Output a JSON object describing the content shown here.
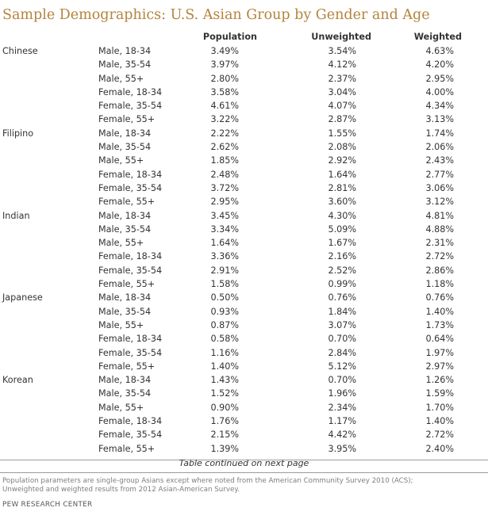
{
  "title": "Sample Demographics: U.S. Asian Group by Gender and Age",
  "columns": {
    "population": "Population",
    "unweighted": "Unweighted",
    "weighted": "Weighted"
  },
  "groups": [
    {
      "name": "Chinese",
      "rows": [
        {
          "label": "Male, 18-34",
          "population": "3.49%",
          "unweighted": "3.54%",
          "weighted": "4.63%"
        },
        {
          "label": "Male, 35-54",
          "population": "3.97%",
          "unweighted": "4.12%",
          "weighted": "4.20%"
        },
        {
          "label": "Male, 55+",
          "population": "2.80%",
          "unweighted": "2.37%",
          "weighted": "2.95%"
        },
        {
          "label": "Female, 18-34",
          "population": "3.58%",
          "unweighted": "3.04%",
          "weighted": "4.00%"
        },
        {
          "label": "Female, 35-54",
          "population": "4.61%",
          "unweighted": "4.07%",
          "weighted": "4.34%"
        },
        {
          "label": "Female, 55+",
          "population": "3.22%",
          "unweighted": "2.87%",
          "weighted": "3.13%"
        }
      ]
    },
    {
      "name": "Filipino",
      "rows": [
        {
          "label": "Male, 18-34",
          "population": "2.22%",
          "unweighted": "1.55%",
          "weighted": "1.74%"
        },
        {
          "label": "Male, 35-54",
          "population": "2.62%",
          "unweighted": "2.08%",
          "weighted": "2.06%"
        },
        {
          "label": "Male, 55+",
          "population": "1.85%",
          "unweighted": "2.92%",
          "weighted": "2.43%"
        },
        {
          "label": "Female, 18-34",
          "population": "2.48%",
          "unweighted": "1.64%",
          "weighted": "2.77%"
        },
        {
          "label": "Female, 35-54",
          "population": "3.72%",
          "unweighted": "2.81%",
          "weighted": "3.06%"
        },
        {
          "label": "Female, 55+",
          "population": "2.95%",
          "unweighted": "3.60%",
          "weighted": "3.12%"
        }
      ]
    },
    {
      "name": "Indian",
      "rows": [
        {
          "label": "Male, 18-34",
          "population": "3.45%",
          "unweighted": "4.30%",
          "weighted": "4.81%"
        },
        {
          "label": "Male, 35-54",
          "population": "3.34%",
          "unweighted": "5.09%",
          "weighted": "4.88%"
        },
        {
          "label": "Male, 55+",
          "population": "1.64%",
          "unweighted": "1.67%",
          "weighted": "2.31%"
        },
        {
          "label": "Female, 18-34",
          "population": "3.36%",
          "unweighted": "2.16%",
          "weighted": "2.72%"
        },
        {
          "label": "Female, 35-54",
          "population": "2.91%",
          "unweighted": "2.52%",
          "weighted": "2.86%"
        },
        {
          "label": "Female, 55+",
          "population": "1.58%",
          "unweighted": "0.99%",
          "weighted": "1.18%"
        }
      ]
    },
    {
      "name": "Japanese",
      "rows": [
        {
          "label": "Male, 18-34",
          "population": "0.50%",
          "unweighted": "0.76%",
          "weighted": "0.76%"
        },
        {
          "label": "Male, 35-54",
          "population": "0.93%",
          "unweighted": "1.84%",
          "weighted": "1.40%"
        },
        {
          "label": "Male, 55+",
          "population": "0.87%",
          "unweighted": "3.07%",
          "weighted": "1.73%"
        },
        {
          "label": "Female, 18-34",
          "population": "0.58%",
          "unweighted": "0.70%",
          "weighted": "0.64%"
        },
        {
          "label": "Female, 35-54",
          "population": "1.16%",
          "unweighted": "2.84%",
          "weighted": "1.97%"
        },
        {
          "label": "Female, 55+",
          "population": "1.40%",
          "unweighted": "5.12%",
          "weighted": "2.97%"
        }
      ]
    },
    {
      "name": "Korean",
      "rows": [
        {
          "label": "Male, 18-34",
          "population": "1.43%",
          "unweighted": "0.70%",
          "weighted": "1.26%"
        },
        {
          "label": "Male, 35-54",
          "population": "1.52%",
          "unweighted": "1.96%",
          "weighted": "1.59%"
        },
        {
          "label": "Male, 55+",
          "population": "0.90%",
          "unweighted": "2.34%",
          "weighted": "1.70%"
        },
        {
          "label": "Female, 18-34",
          "population": "1.76%",
          "unweighted": "1.17%",
          "weighted": "1.40%"
        },
        {
          "label": "Female, 35-54",
          "population": "2.15%",
          "unweighted": "4.42%",
          "weighted": "2.72%"
        },
        {
          "label": "Female, 55+",
          "population": "1.39%",
          "unweighted": "3.95%",
          "weighted": "2.40%"
        }
      ]
    }
  ],
  "continued": "Table continued on next page",
  "note_lines": [
    "Population parameters are single-group Asians except where noted from the American Community Survey 2010 (ACS);",
    "Unweighted and weighted results from 2012 Asian-American Survey."
  ],
  "source": "PEW RESEARCH CENTER",
  "colors": {
    "title": "#b4843d",
    "text": "#333333",
    "note": "#7f7f7f"
  }
}
